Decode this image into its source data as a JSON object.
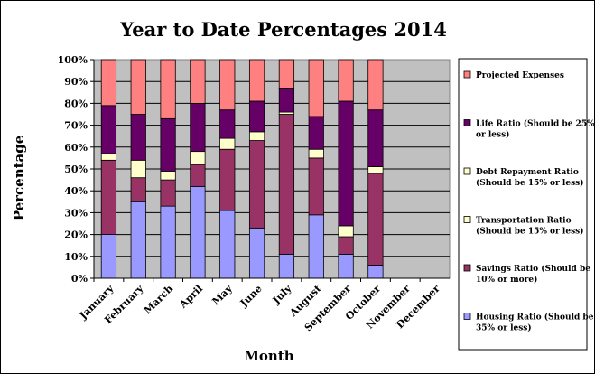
{
  "chart_data": {
    "type": "bar",
    "stacked": true,
    "title": "Year to Date Percentages 2014",
    "xlabel": "Month",
    "ylabel": "Percentage",
    "ylim": [
      0,
      100
    ],
    "y_ticks": [
      "0%",
      "10%",
      "20%",
      "30%",
      "40%",
      "50%",
      "60%",
      "70%",
      "80%",
      "90%",
      "100%"
    ],
    "grid": true,
    "legend_position": "right",
    "categories": [
      "January",
      "February",
      "March",
      "April",
      "May",
      "June",
      "July",
      "August",
      "September",
      "October",
      "November",
      "December"
    ],
    "series": [
      {
        "name": "Housing Ratio (Should be 35% or less)",
        "legend_lines": [
          "Housing Ratio (Should be",
          "35% or less)"
        ],
        "color": "#9999ff",
        "values": [
          20,
          35,
          33,
          42,
          31,
          23,
          11,
          29,
          11,
          6,
          null,
          null
        ]
      },
      {
        "name": "Savings Ratio (Should be 10% or more)",
        "legend_lines": [
          "Savings Ratio (Should be",
          "10% or more)"
        ],
        "color": "#993366",
        "values": [
          34,
          11,
          12,
          10,
          28,
          40,
          64,
          26,
          8,
          42,
          null,
          null
        ]
      },
      {
        "name": "Transportation Ratio (Should be 15% or less)",
        "legend_lines": [
          "Transportation Ratio",
          "(Should be 15% or less)"
        ],
        "color": "#ffffcc",
        "values": [
          0,
          0,
          0,
          0,
          0,
          0,
          1,
          0,
          0,
          0,
          null,
          null
        ]
      },
      {
        "name": "Debt Repayment Ratio (Should be 15% or less)",
        "legend_lines": [
          "Debt Repayment Ratio",
          "(Should be 15% or less)"
        ],
        "color": "#ffffcc",
        "values": [
          3,
          8,
          4,
          6,
          5,
          4,
          0,
          4,
          5,
          3,
          null,
          null
        ]
      },
      {
        "name": "Life Ratio (Should be 25% or less)",
        "legend_lines": [
          "Life Ratio (Should be 25%",
          "or less)"
        ],
        "color": "#660066",
        "values": [
          22,
          21,
          24,
          22,
          13,
          14,
          11,
          15,
          57,
          26,
          null,
          null
        ]
      },
      {
        "name": "Projected Expenses",
        "legend_lines": [
          "Projected Expenses"
        ],
        "color": "#ff8080",
        "values": [
          21,
          25,
          27,
          20,
          23,
          19,
          13,
          26,
          19,
          23,
          null,
          null
        ]
      }
    ]
  }
}
